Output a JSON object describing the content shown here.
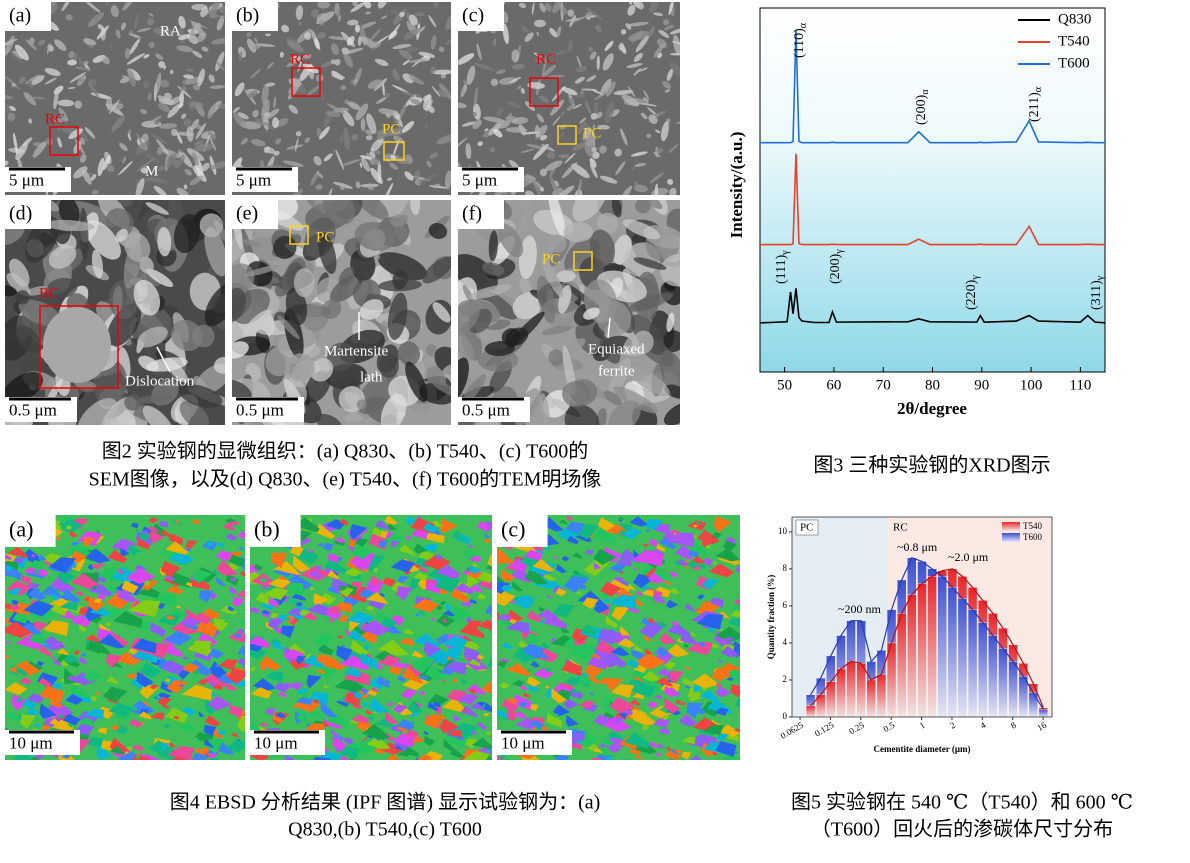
{
  "figure2": {
    "panels": [
      {
        "label": "(a)",
        "scale_bar": "5 μm",
        "annotations": [
          "RA",
          "RC",
          "M"
        ]
      },
      {
        "label": "(b)",
        "scale_bar": "5 μm",
        "annotations": [
          "RC",
          "PC"
        ]
      },
      {
        "label": "(c)",
        "scale_bar": "5 μm",
        "annotations": [
          "RC",
          "PC"
        ]
      },
      {
        "label": "(d)",
        "scale_bar": "0.5 μm",
        "annotations": [
          "RC",
          "Dislocation"
        ]
      },
      {
        "label": "(e)",
        "scale_bar": "0.5 μm",
        "annotations": [
          "PC",
          "Martensite",
          "lath"
        ]
      },
      {
        "label": "(f)",
        "scale_bar": "0.5 μm",
        "annotations": [
          "PC",
          "Equiaxed",
          "ferrite"
        ]
      }
    ],
    "caption": [
      "图2 实验钢的显微组织：(a) Q830、(b) T540、(c) T600的",
      "SEM图像，以及(d) Q830、(e) T540、(f) T600的TEM明场像"
    ]
  },
  "figure3": {
    "chart_data": {
      "type": "line",
      "y_label": "Intensity/(a.u.)",
      "x_label": "2θ/degree",
      "x": [
        45,
        50.5,
        51.2,
        51.7,
        52.3,
        52.9,
        53.5,
        56,
        59,
        59.7,
        60.5,
        75,
        77.2,
        79.5,
        89,
        89.7,
        90.5,
        97,
        99.6,
        101.5,
        110,
        111.5,
        113,
        115
      ],
      "series": [
        {
          "name": "Q830",
          "color": "#000000",
          "values": [
            13.5,
            13.8,
            22,
            16,
            23,
            15,
            14,
            13.6,
            13.6,
            16.5,
            13.7,
            13.8,
            14.6,
            13.8,
            13.7,
            15.5,
            13.7,
            14,
            15.5,
            14,
            13.7,
            15.5,
            13.7,
            13.5
          ]
        },
        {
          "name": "T540",
          "color": "#e8412c",
          "values": [
            35,
            35,
            35,
            35.2,
            60,
            35.3,
            35,
            35,
            35,
            35.1,
            35,
            35,
            36.5,
            35,
            35,
            35.1,
            35,
            35,
            40,
            35,
            35,
            35.1,
            35,
            35
          ]
        },
        {
          "name": "T600",
          "color": "#1f6fd1",
          "values": [
            63,
            63,
            63,
            63.3,
            94,
            63.4,
            63,
            63,
            63,
            63.1,
            63,
            63,
            66,
            63,
            63,
            63.1,
            63,
            63.2,
            69,
            63.2,
            63,
            63.1,
            63,
            63
          ]
        }
      ],
      "xlim": [
        45,
        115
      ],
      "xticks": [
        50,
        60,
        70,
        80,
        90,
        100,
        110
      ],
      "ylim": [
        0,
        100
      ],
      "legend": "upper right",
      "peak_labels": [
        {
          "text": "(110)",
          "sub": "α"
        },
        {
          "text": "(200)",
          "sub": "α"
        },
        {
          "text": "(211)",
          "sub": "α"
        },
        {
          "text": "(111)",
          "sub": "γ"
        },
        {
          "text": "(200)",
          "sub": "γ"
        },
        {
          "text": "(220)",
          "sub": "γ"
        },
        {
          "text": "(311)",
          "sub": "γ"
        }
      ]
    },
    "caption": "图3 三种实验钢的XRD图示"
  },
  "figure4": {
    "panels": [
      {
        "label": "(a)",
        "scale_bar": "10 μm"
      },
      {
        "label": "(b)",
        "scale_bar": "10 μm"
      },
      {
        "label": "(c)",
        "scale_bar": "10 μm"
      }
    ],
    "caption": [
      "图4 EBSD 分析结果 (IPF 图谱) 显示试验钢为：(a)",
      "Q830,(b) T540,(c) T600"
    ]
  },
  "figure5": {
    "chart_data": {
      "type": "bar",
      "x_label": "Cementite diameter (μm)",
      "y_label": "Quantity fraction (%)",
      "x": [
        0.0794,
        0.1,
        0.126,
        0.159,
        0.2,
        0.252,
        0.317,
        0.4,
        0.504,
        0.635,
        0.8,
        1.01,
        1.27,
        1.6,
        2.02,
        2.54,
        3.2,
        4.03,
        5.08,
        6.4,
        8.06,
        10.2,
        12.8,
        16.1
      ],
      "series": [
        {
          "name": "T540",
          "color": "#e8262b",
          "values": [
            0.6,
            1.2,
            1.9,
            2.6,
            3.0,
            2.9,
            2.0,
            2.3,
            4.0,
            5.6,
            6.6,
            7.2,
            7.6,
            7.9,
            8.0,
            7.6,
            7.0,
            6.3,
            5.6,
            4.8,
            3.9,
            2.9,
            1.8,
            0.5
          ]
        },
        {
          "name": "T600",
          "color": "#3d4fcf",
          "values": [
            1.2,
            2.1,
            3.3,
            4.4,
            5.2,
            5.2,
            3.0,
            3.6,
            5.8,
            7.4,
            8.6,
            8.4,
            8.0,
            7.6,
            7.0,
            6.4,
            5.8,
            5.1,
            4.4,
            3.7,
            3.0,
            2.2,
            1.3,
            0.4
          ]
        }
      ],
      "xscale": "log",
      "xlim": [
        0.052,
        19.6
      ],
      "xticks": [
        0.0625,
        0.125,
        0.25,
        0.5,
        1,
        2,
        4,
        8,
        16
      ],
      "ylim": [
        0,
        10.8
      ],
      "yticks": [
        0,
        2,
        4,
        6,
        8,
        10
      ],
      "legend": "upper right",
      "regions": [
        "PC",
        "RC"
      ],
      "annotations": [
        "~200 nm",
        "~0.8 μm",
        "~2.0 μm"
      ]
    },
    "caption": [
      "图5 实验钢在 540 ℃（T540）和 600 ℃",
      "（T600）回火后的渗碳体尺寸分布"
    ]
  }
}
